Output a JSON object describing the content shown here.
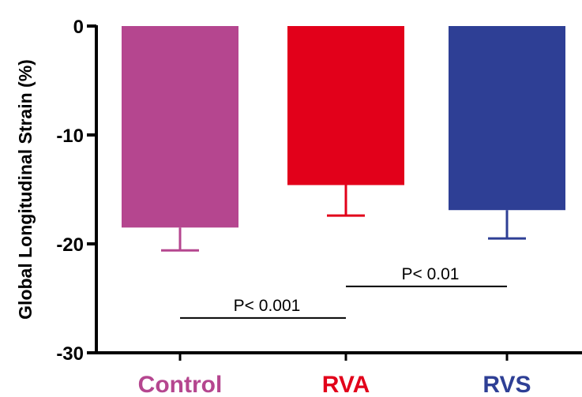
{
  "chart_data": {
    "type": "bar",
    "title": "",
    "xlabel": "",
    "ylabel": "Global Longitudinal Strain (%)",
    "ylim": [
      -30,
      0
    ],
    "yticks": [
      0,
      -10,
      -20,
      -30
    ],
    "ytick_labels": [
      "0",
      "-10",
      "-20",
      "-30"
    ],
    "grid": false,
    "categories": [
      "Control",
      "RVA",
      "RVS"
    ],
    "values": [
      -18.5,
      -14.6,
      -16.9
    ],
    "errors": [
      2.1,
      2.8,
      2.6
    ],
    "colors": [
      "#b5468f",
      "#e2001a",
      "#2e3f95"
    ],
    "annotations": [
      {
        "text": "P< 0.001",
        "from": "Control",
        "to": "RVA",
        "y": -26.8
      },
      {
        "text": "P< 0.01",
        "from": "RVA",
        "to": "RVS",
        "y": -23.9
      }
    ]
  }
}
